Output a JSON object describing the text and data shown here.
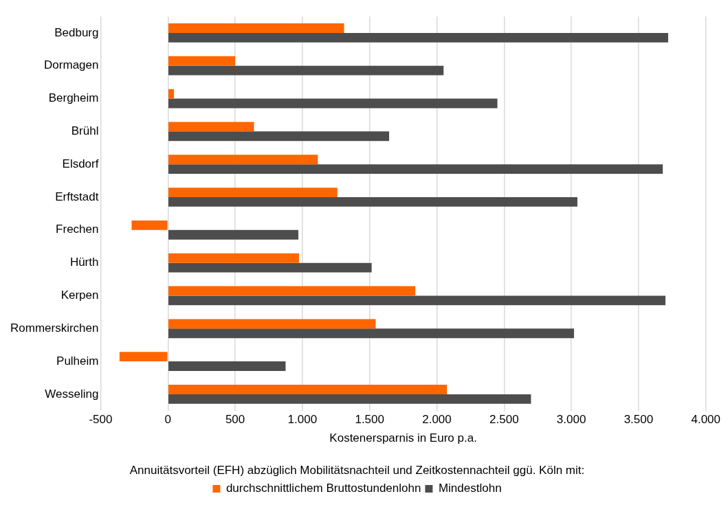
{
  "chart_data": {
    "type": "bar",
    "orientation": "horizontal",
    "xlabel": "Kostenersparnis in Euro p.a.",
    "legend_title": "Annuitätsvorteil (EFH) abzüglich Mobilitätsnachteil und Zeitkostennachteil ggü. Köln mit:",
    "legend": "bottom",
    "grid": "x",
    "categories": [
      "Bedburg",
      "Dormagen",
      "Bergheim",
      "Brühl",
      "Elsdorf",
      "Erftstadt",
      "Frechen",
      "Hürth",
      "Kerpen",
      "Rommerskirchen",
      "Pulheim",
      "Wesseling"
    ],
    "series": [
      {
        "name": "durchschnittlichem Bruttostundenlohn",
        "color": "#ff6600",
        "values": [
          1310,
          500,
          45,
          640,
          1115,
          1260,
          -270,
          975,
          1840,
          1545,
          -360,
          2075
        ]
      },
      {
        "name": "Mindestlohn",
        "color": "#4d4d4d",
        "values": [
          3720,
          2050,
          2450,
          1645,
          3680,
          3045,
          970,
          1515,
          3700,
          3020,
          875,
          2700
        ]
      }
    ],
    "xlim": [
      -500,
      4000
    ],
    "xticks": [
      {
        "value": -500,
        "label": "-500"
      },
      0,
      500,
      {
        "value": 1000,
        "label": "1.000"
      },
      {
        "value": 1500,
        "label": "1.500"
      },
      {
        "value": 2000,
        "label": "2.000"
      },
      {
        "value": 2500,
        "label": "2.500"
      },
      {
        "value": 3000,
        "label": "3.000"
      },
      {
        "value": 3500,
        "label": "3.500"
      },
      {
        "value": 4000,
        "label": "4.000"
      }
    ]
  }
}
